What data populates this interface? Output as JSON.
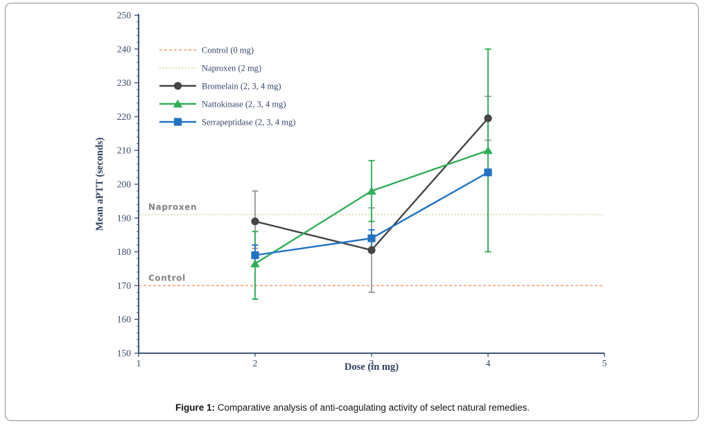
{
  "figure": {
    "caption_prefix": "Figure 1:",
    "caption_rest": " Comparative analysis of anti-coagulating activity of select natural remedies."
  },
  "chart_data": {
    "type": "line",
    "title": "",
    "xlabel": "Dose (in mg)",
    "ylabel": "Mean aPTT (seconds)",
    "xlim": [
      1,
      5
    ],
    "ylim": [
      150,
      250
    ],
    "x_ticks": [
      1,
      2,
      3,
      4,
      5
    ],
    "y_ticks": [
      150,
      160,
      170,
      180,
      190,
      200,
      210,
      220,
      230,
      240,
      250
    ],
    "y_minor_step": 2,
    "grid": false,
    "legend_position": "top-left-inside",
    "axis_color": "#3f5577",
    "reference_lines": [
      {
        "id": "naproxen",
        "legend_label": "Naproxen (2 mg)",
        "annotation": "Naproxen",
        "value": 191,
        "color": "#ddd7a6",
        "dash": "2 2.6"
      },
      {
        "id": "control",
        "legend_label": "Control (0 mg)",
        "annotation": "Control",
        "value": 170,
        "color": "#efa87f",
        "dash": "4 3"
      }
    ],
    "series": [
      {
        "id": "bromelain",
        "name": "Bromelain (2, 3, 4 mg)",
        "marker": "circle",
        "color": "#454545",
        "err_color": "#9b9b9b",
        "x": [
          2,
          3,
          4
        ],
        "y": [
          189,
          180.5,
          219.5
        ],
        "err_low": [
          8,
          12.5,
          6.5
        ],
        "err_high": [
          9,
          12.5,
          6.5
        ]
      },
      {
        "id": "nattokinase",
        "name": "Nattokinase (2, 3, 4 mg)",
        "marker": "triangle",
        "color": "#2fae57",
        "err_color": "#2fae57",
        "x": [
          2,
          3,
          4
        ],
        "y": [
          176.5,
          198,
          210
        ],
        "err_low": [
          10.5,
          9,
          30
        ],
        "err_high": [
          9.5,
          9,
          30
        ]
      },
      {
        "id": "serrapeptidase",
        "name": "Serrapeptidase (2, 3, 4 mg)",
        "marker": "square",
        "color": "#2273c3",
        "err_color": "#2273c3",
        "x": [
          2,
          3,
          4
        ],
        "y": [
          179,
          184,
          203.5
        ],
        "err_low": [
          3,
          3,
          0
        ],
        "err_high": [
          3,
          2.5,
          0
        ]
      }
    ]
  }
}
